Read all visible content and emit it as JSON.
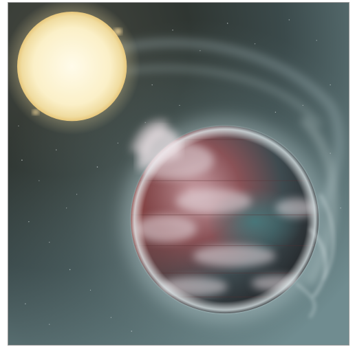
{
  "image": {
    "kind": "illustration",
    "subject_icons": [
      "sun-icon",
      "planet-icon",
      "gas-tail-icon",
      "starfield-icon"
    ]
  },
  "colors": {
    "space_dark": "#2e3431",
    "space_mid": "#4f5f60",
    "space_light": "#a9c1c5",
    "sun_core": "#fff6da",
    "sun_glow": "#f3e3a6",
    "planet_red": "#8c3a33",
    "planet_dark": "#2d2a2e",
    "planet_teal": "#3c6466",
    "cloud_white": "#e6dde2",
    "border": "#9a9a9a"
  }
}
